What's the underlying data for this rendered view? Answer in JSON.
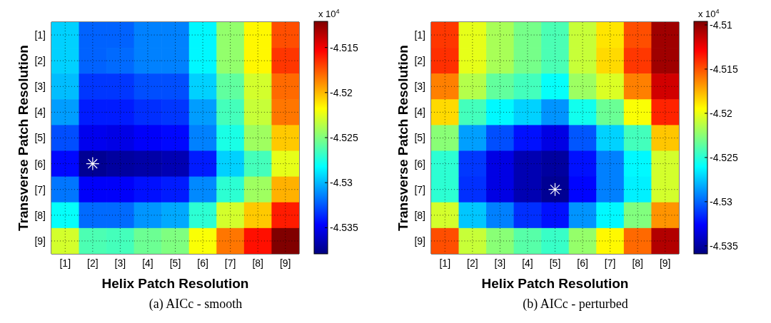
{
  "chart_data": [
    {
      "type": "heatmap",
      "title": "(a) AICc - smooth",
      "xlabel": "Helix Patch Resolution",
      "ylabel": "Transverse Patch Resolution",
      "clabel": "x 10$^{4}$",
      "categories": [
        "[1]",
        "[2]",
        "[3]",
        "[4]",
        "[5]",
        "[6]",
        "[7]",
        "[8]",
        "[9]"
      ],
      "y_categories": [
        "[1]",
        "[2]",
        "[3]",
        "[4]",
        "[5]",
        "[6]",
        "[7]",
        "[8]",
        "[9]"
      ],
      "cells": [
        [
          -4.5294,
          -4.5322,
          -4.5322,
          -4.5314,
          -4.5314,
          -4.5284,
          -4.5245,
          -4.5216,
          -4.5173
        ],
        [
          -4.5294,
          -4.5322,
          -4.532,
          -4.5314,
          -4.5314,
          -4.5284,
          -4.5245,
          -4.5216,
          -4.5167
        ],
        [
          -4.5299,
          -4.5333,
          -4.5333,
          -4.5327,
          -4.5327,
          -4.5294,
          -4.5258,
          -4.5229,
          -4.518
        ],
        [
          -4.5307,
          -4.534,
          -4.534,
          -4.5335,
          -4.5333,
          -4.5307,
          -4.5265,
          -4.5232,
          -4.5183
        ],
        [
          -4.5327,
          -4.5351,
          -4.5353,
          -4.5348,
          -4.5345,
          -4.5314,
          -4.5276,
          -4.5242,
          -4.5204
        ],
        [
          -4.5345,
          -4.5374,
          -4.5371,
          -4.5369,
          -4.5366,
          -4.534,
          -4.5294,
          -4.5265,
          -4.5224
        ],
        [
          -4.5317,
          -4.5348,
          -4.5348,
          -4.5343,
          -4.534,
          -4.5312,
          -4.5271,
          -4.5242,
          -4.5198
        ],
        [
          -4.5281,
          -4.532,
          -4.532,
          -4.5309,
          -4.5304,
          -4.5271,
          -4.5229,
          -4.5204,
          -4.516
        ],
        [
          -4.5229,
          -4.5263,
          -4.5265,
          -4.5255,
          -4.525,
          -4.5219,
          -4.5183,
          -4.5157,
          -4.5121
        ]
      ],
      "clim": [
        -4.5379,
        -4.5121
      ],
      "cticks": [
        -4.535,
        -4.53,
        -4.525,
        -4.52,
        -4.515
      ],
      "grid": true
    },
    {
      "type": "heatmap",
      "title": "(b) AICc - perturbed",
      "xlabel": "Helix Patch Resolution",
      "ylabel": "Transverse Patch Resolution",
      "clabel": "x 10$^{4}$",
      "categories": [
        "[1]",
        "[2]",
        "[3]",
        "[4]",
        "[5]",
        "[6]",
        "[7]",
        "[8]",
        "[9]"
      ],
      "y_categories": [
        "[1]",
        "[2]",
        "[3]",
        "[4]",
        "[5]",
        "[6]",
        "[7]",
        "[8]",
        "[9]"
      ],
      "cells": [
        [
          -4.5143,
          -4.5201,
          -4.5217,
          -4.523,
          -4.5241,
          -4.5209,
          -4.5188,
          -4.5149,
          -4.5104
        ],
        [
          -4.5141,
          -4.5201,
          -4.5217,
          -4.523,
          -4.5241,
          -4.5209,
          -4.5185,
          -4.5143,
          -4.5104
        ],
        [
          -4.5162,
          -4.5214,
          -4.5235,
          -4.5243,
          -4.5259,
          -4.522,
          -4.5204,
          -4.5162,
          -4.5117
        ],
        [
          -4.5185,
          -4.5243,
          -4.5262,
          -4.5272,
          -4.5288,
          -4.5256,
          -4.5233,
          -4.5196,
          -4.5138
        ],
        [
          -4.5225,
          -4.5285,
          -4.5306,
          -4.5322,
          -4.5333,
          -4.5304,
          -4.5272,
          -4.5243,
          -4.518
        ],
        [
          -4.5249,
          -4.5312,
          -4.5333,
          -4.5346,
          -4.5351,
          -4.5322,
          -4.5293,
          -4.5262,
          -4.5206
        ],
        [
          -4.5249,
          -4.5314,
          -4.5333,
          -4.5346,
          -4.5354,
          -4.5325,
          -4.5293,
          -4.5264,
          -4.5206
        ],
        [
          -4.5206,
          -4.5275,
          -4.5293,
          -4.5314,
          -4.5322,
          -4.5288,
          -4.5262,
          -4.5227,
          -4.5167
        ],
        [
          -4.5149,
          -4.5209,
          -4.5225,
          -4.5238,
          -4.5246,
          -4.5222,
          -4.5193,
          -4.5156,
          -4.5109
        ]
      ],
      "clim": [
        -4.5359,
        -4.5096
      ],
      "cticks": [
        -4.535,
        -4.53,
        -4.525,
        -4.52,
        -4.515,
        -4.51
      ],
      "grid": true
    }
  ]
}
